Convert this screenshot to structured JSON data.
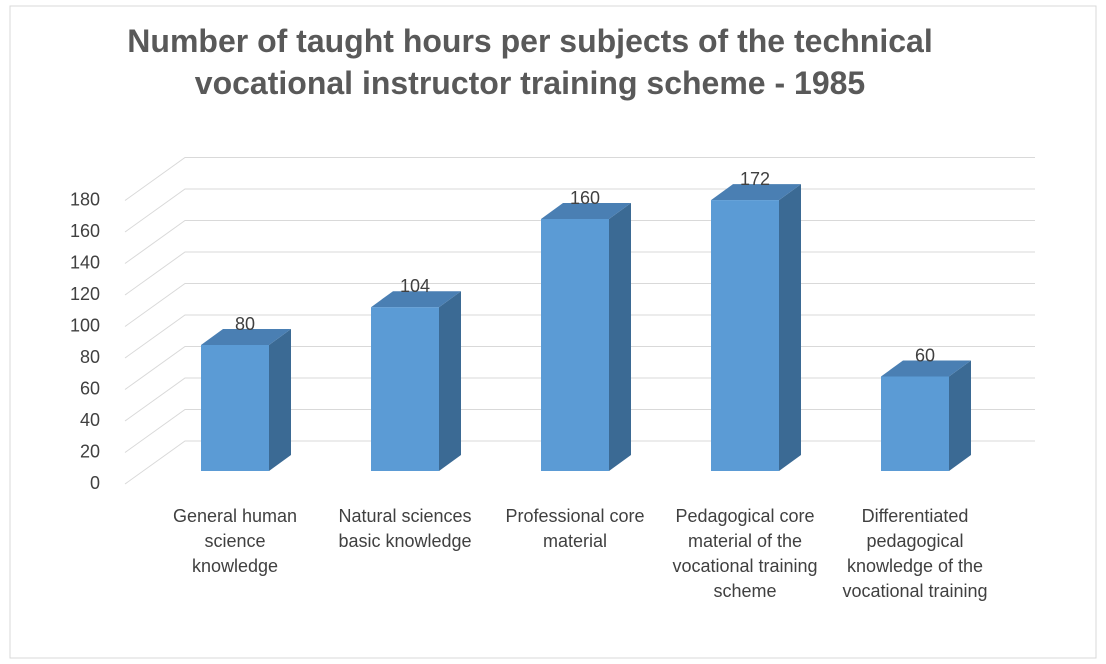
{
  "chart_data": {
    "type": "bar3d",
    "title": "Number of taught hours per subjects of the technical vocational instructor training scheme - 1985",
    "categories": [
      "General human science knowledge",
      "Natural sciences basic knowledge",
      "Professional core material",
      "Pedagogical core material of the vocational training scheme",
      "Differentiated pedagogical knowledge of the vocational training"
    ],
    "values": [
      80,
      104,
      160,
      172,
      60
    ],
    "color": "#5b9bd5",
    "ylim": [
      0,
      180
    ],
    "yticks": [
      0,
      20,
      40,
      60,
      80,
      100,
      120,
      140,
      160,
      180
    ],
    "grid": true
  }
}
